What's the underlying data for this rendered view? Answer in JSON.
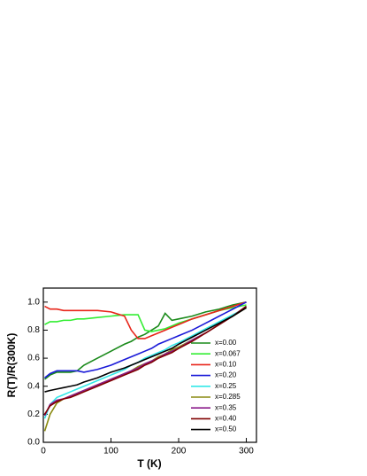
{
  "chart_data": {
    "type": "line",
    "x_label": "T (K)",
    "y_label": "R(T)/R(300K)",
    "x": [
      2,
      10,
      20,
      30,
      40,
      50,
      60,
      80,
      100,
      120,
      130,
      140,
      150,
      160,
      170,
      180,
      190,
      200,
      220,
      240,
      260,
      280,
      300
    ],
    "series": [
      {
        "name": "x=0.00",
        "color": "#1a8a1a",
        "values": [
          0.45,
          0.48,
          0.5,
          0.5,
          0.5,
          0.51,
          0.55,
          0.6,
          0.65,
          0.7,
          0.72,
          0.75,
          0.77,
          0.8,
          0.83,
          0.92,
          0.87,
          0.88,
          0.9,
          0.93,
          0.95,
          0.98,
          1.0
        ]
      },
      {
        "name": "x=0.067",
        "color": "#33ee33",
        "values": [
          0.84,
          0.86,
          0.86,
          0.87,
          0.87,
          0.88,
          0.88,
          0.89,
          0.9,
          0.91,
          0.91,
          0.91,
          0.8,
          0.79,
          0.8,
          0.81,
          0.83,
          0.85,
          0.88,
          0.91,
          0.94,
          0.96,
          0.98
        ]
      },
      {
        "name": "x=0.10",
        "color": "#e8251a",
        "values": [
          0.97,
          0.95,
          0.95,
          0.94,
          0.94,
          0.94,
          0.94,
          0.94,
          0.93,
          0.9,
          0.8,
          0.74,
          0.74,
          0.76,
          0.78,
          0.8,
          0.82,
          0.84,
          0.88,
          0.91,
          0.94,
          0.97,
          1.0
        ]
      },
      {
        "name": "x=0.20",
        "color": "#1a1ad8",
        "values": [
          0.46,
          0.49,
          0.51,
          0.51,
          0.51,
          0.51,
          0.5,
          0.52,
          0.55,
          0.59,
          0.61,
          0.63,
          0.65,
          0.67,
          0.7,
          0.72,
          0.74,
          0.76,
          0.8,
          0.85,
          0.9,
          0.95,
          1.0
        ]
      },
      {
        "name": "x=0.25",
        "color": "#33e8e8",
        "values": [
          0.17,
          0.27,
          0.32,
          0.34,
          0.36,
          0.38,
          0.4,
          0.44,
          0.48,
          0.52,
          0.55,
          0.57,
          0.6,
          0.62,
          0.64,
          0.66,
          0.69,
          0.71,
          0.76,
          0.81,
          0.86,
          0.91,
          0.96
        ]
      },
      {
        "name": "x=0.285",
        "color": "#8a8a10",
        "values": [
          0.08,
          0.2,
          0.28,
          0.31,
          0.33,
          0.35,
          0.37,
          0.41,
          0.45,
          0.49,
          0.51,
          0.54,
          0.56,
          0.58,
          0.61,
          0.63,
          0.66,
          0.68,
          0.73,
          0.78,
          0.84,
          0.9,
          0.96
        ]
      },
      {
        "name": "x=0.35",
        "color": "#8a1a8a",
        "values": [
          0.19,
          0.27,
          0.3,
          0.31,
          0.33,
          0.35,
          0.37,
          0.41,
          0.45,
          0.49,
          0.51,
          0.53,
          0.56,
          0.58,
          0.6,
          0.63,
          0.65,
          0.67,
          0.73,
          0.78,
          0.84,
          0.9,
          0.97
        ]
      },
      {
        "name": "x=0.40",
        "color": "#800000",
        "values": [
          0.2,
          0.26,
          0.29,
          0.31,
          0.32,
          0.34,
          0.36,
          0.4,
          0.44,
          0.48,
          0.5,
          0.52,
          0.55,
          0.57,
          0.6,
          0.62,
          0.64,
          0.67,
          0.72,
          0.78,
          0.84,
          0.9,
          0.97
        ]
      },
      {
        "name": "x=0.50",
        "color": "#000000",
        "values": [
          0.36,
          0.37,
          0.38,
          0.39,
          0.4,
          0.41,
          0.43,
          0.46,
          0.5,
          0.53,
          0.55,
          0.57,
          0.59,
          0.61,
          0.63,
          0.65,
          0.67,
          0.7,
          0.75,
          0.8,
          0.85,
          0.9,
          0.96
        ]
      }
    ],
    "xlim": [
      0,
      315
    ],
    "ylim": [
      0,
      1.1
    ],
    "xticks": [
      0,
      100,
      200,
      300
    ],
    "yticks": [
      {
        "value": 0,
        "label": "0.0"
      },
      0.2,
      0.4,
      0.6,
      0.8,
      {
        "value": 1,
        "label": "1.0"
      }
    ],
    "legend": "right"
  }
}
